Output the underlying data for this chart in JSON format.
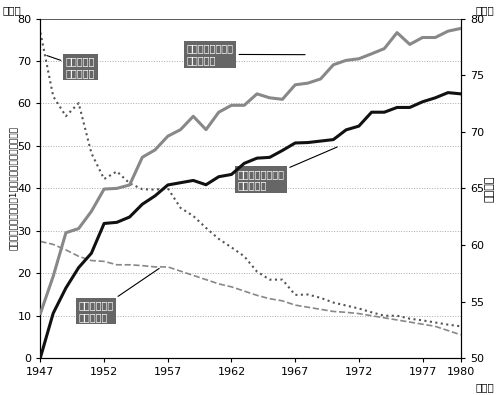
{
  "years": [
    1947,
    1948,
    1949,
    1950,
    1951,
    1952,
    1953,
    1954,
    1955,
    1956,
    1957,
    1958,
    1959,
    1960,
    1961,
    1962,
    1963,
    1964,
    1965,
    1966,
    1967,
    1968,
    1969,
    1970,
    1971,
    1972,
    1973,
    1974,
    1975,
    1976,
    1977,
    1978,
    1979,
    1980
  ],
  "infant_mortality": [
    76.7,
    61.7,
    57.0,
    60.1,
    48.3,
    42.2,
    44.0,
    41.2,
    39.8,
    39.7,
    40.0,
    35.4,
    33.5,
    30.7,
    28.1,
    26.1,
    24.0,
    20.4,
    18.5,
    18.5,
    14.9,
    15.0,
    14.2,
    13.1,
    12.4,
    11.7,
    10.8,
    10.0,
    10.0,
    9.3,
    8.9,
    8.4,
    7.9,
    7.5
  ],
  "neonatal_mortality": [
    27.5,
    26.8,
    25.5,
    24.0,
    23.0,
    22.8,
    22.0,
    22.0,
    21.8,
    21.5,
    21.5,
    20.5,
    19.5,
    18.5,
    17.5,
    16.8,
    15.8,
    14.8,
    14.0,
    13.5,
    12.5,
    12.0,
    11.5,
    11.0,
    10.8,
    10.5,
    10.0,
    9.5,
    9.0,
    8.5,
    8.0,
    7.5,
    6.5,
    5.5
  ],
  "life_expectancy_female": [
    53.96,
    57.22,
    61.08,
    61.45,
    62.97,
    64.94,
    65.0,
    65.3,
    67.75,
    68.4,
    69.61,
    70.19,
    71.37,
    70.19,
    71.73,
    72.34,
    72.34,
    73.35,
    73.0,
    72.87,
    74.15,
    74.3,
    74.67,
    75.92,
    76.31,
    76.45,
    76.89,
    77.35,
    78.76,
    77.72,
    78.33,
    78.33,
    78.89,
    79.13
  ],
  "life_expectancy_male": [
    50.06,
    53.96,
    56.2,
    58.0,
    59.27,
    61.9,
    62.0,
    62.47,
    63.6,
    64.34,
    65.3,
    65.5,
    65.7,
    65.32,
    66.03,
    66.23,
    67.21,
    67.67,
    67.74,
    68.35,
    69.01,
    69.05,
    69.18,
    69.31,
    70.17,
    70.5,
    71.73,
    71.73,
    72.15,
    72.15,
    72.65,
    73.0,
    73.46,
    73.35
  ],
  "xlim": [
    1947,
    1980
  ],
  "ylim_left": [
    0,
    80
  ],
  "ylim_right": [
    50,
    80
  ],
  "xticks": [
    1947,
    1952,
    1957,
    1962,
    1967,
    1972,
    1977,
    1980
  ],
  "yticks_left": [
    0,
    10,
    20,
    30,
    40,
    50,
    60,
    70,
    80
  ],
  "yticks_right": [
    50,
    55,
    60,
    65,
    70,
    75,
    80
  ],
  "infant_color": "#555555",
  "neonatal_color": "#888888",
  "life_female_color": "#888888",
  "life_male_color": "#111111",
  "annotation_bg": "#666666",
  "annotation_fg": "#ffffff",
  "ylabel_left": "乳児・新生児死亡率（1０００人あたりの死亡数）",
  "ylabel_right": "平均寸命",
  "unit_left": "（人）",
  "unit_right": "（歳）",
  "unit_year": "（年）",
  "ann_infant": "乳児死亡率\n（左目盛）",
  "ann_female": "平均寸命（女性）\n（右目盛）",
  "ann_male": "平均寸命（男性）\n（右目盛）",
  "ann_neonatal": "新生児死亡率\n（左目盛）"
}
